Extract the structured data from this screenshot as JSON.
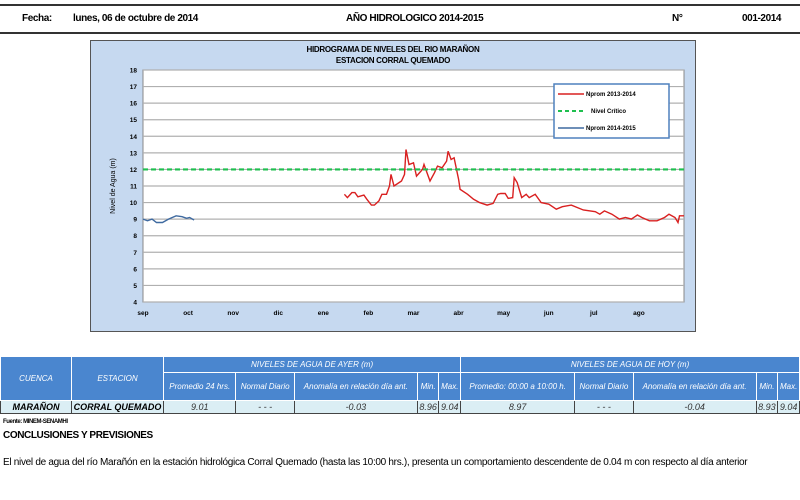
{
  "header": {
    "fecha_label": "Fecha:",
    "fecha_value": "lunes, 06 de octubre de 2014",
    "center": "AÑO HIDROLOGICO 2014-2015",
    "num_label": "N°",
    "num_value": "001-2014"
  },
  "chart_data": {
    "type": "line",
    "title": "HIDROGRAMA  DE NIVELES  DEL RIO MARAÑON",
    "subtitle": "ESTACION CORRAL QUEMADO",
    "ylabel": "Nivel de Agua (m)",
    "xlabel": "",
    "ylim": [
      4,
      18
    ],
    "yticks": [
      "4",
      "5",
      "6",
      "7",
      "8",
      "9",
      "10",
      "11",
      "12",
      "13",
      "14",
      "15",
      "16",
      "17",
      "18"
    ],
    "xticks": [
      "sep",
      "oct",
      "nov",
      "dic",
      "ene",
      "feb",
      "mar",
      "abr",
      "may",
      "jun",
      "jul",
      "ago"
    ],
    "grid": true,
    "legend_position": "top-right",
    "series": [
      {
        "name": "Nprom 2013-2014",
        "color": "#d92020",
        "style": "solid",
        "points": [
          [
            "2014-01-15",
            10.5
          ],
          [
            "2014-01-17",
            10.3
          ],
          [
            "2014-01-20",
            10.6
          ],
          [
            "2014-01-22",
            10.6
          ],
          [
            "2014-01-24",
            10.35
          ],
          [
            "2014-01-28",
            10.45
          ],
          [
            "2014-01-30",
            10.2
          ],
          [
            "2014-02-03",
            9.85
          ],
          [
            "2014-02-05",
            9.85
          ],
          [
            "2014-02-08",
            10.1
          ],
          [
            "2014-02-10",
            10.5
          ],
          [
            "2014-02-13",
            10.5
          ],
          [
            "2014-02-15",
            11.0
          ],
          [
            "2014-02-16",
            11.7
          ],
          [
            "2014-02-18",
            11.0
          ],
          [
            "2014-02-23",
            11.3
          ],
          [
            "2014-02-25",
            11.7
          ],
          [
            "2014-02-26",
            13.2
          ],
          [
            "2014-02-28",
            12.3
          ],
          [
            "2014-03-01",
            12.4
          ],
          [
            "2014-03-03",
            11.6
          ],
          [
            "2014-03-07",
            12.0
          ],
          [
            "2014-03-08",
            12.3
          ],
          [
            "2014-03-12",
            11.3
          ],
          [
            "2014-03-15",
            11.8
          ],
          [
            "2014-03-17",
            12.2
          ],
          [
            "2014-03-20",
            12.1
          ],
          [
            "2014-03-23",
            12.5
          ],
          [
            "2014-03-24",
            13.1
          ],
          [
            "2014-03-26",
            12.6
          ],
          [
            "2014-03-28",
            12.7
          ],
          [
            "2014-03-31",
            11.4
          ],
          [
            "2014-04-02",
            10.8
          ],
          [
            "2014-04-07",
            10.5
          ],
          [
            "2014-04-11",
            10.2
          ],
          [
            "2014-04-15",
            10.0
          ],
          [
            "2014-04-20",
            9.85
          ],
          [
            "2014-04-24",
            9.95
          ],
          [
            "2014-04-27",
            10.5
          ],
          [
            "2014-04-29",
            10.55
          ],
          [
            "2014-05-02",
            10.55
          ],
          [
            "2014-05-04",
            10.25
          ],
          [
            "2014-05-07",
            10.3
          ],
          [
            "2014-05-08",
            11.5
          ],
          [
            "2014-05-10",
            11.2
          ],
          [
            "2014-05-13",
            10.3
          ],
          [
            "2014-05-16",
            10.5
          ],
          [
            "2014-05-18",
            10.3
          ],
          [
            "2014-05-22",
            10.5
          ],
          [
            "2014-05-26",
            10.0
          ],
          [
            "2014-06-01",
            9.9
          ],
          [
            "2014-06-06",
            9.6
          ],
          [
            "2014-06-10",
            9.75
          ],
          [
            "2014-06-16",
            9.85
          ],
          [
            "2014-06-24",
            9.55
          ],
          [
            "2014-07-02",
            9.45
          ],
          [
            "2014-07-05",
            9.3
          ],
          [
            "2014-07-08",
            9.5
          ],
          [
            "2014-07-13",
            9.3
          ],
          [
            "2014-07-18",
            9.0
          ],
          [
            "2014-07-22",
            9.1
          ],
          [
            "2014-07-26",
            9.0
          ],
          [
            "2014-07-30",
            9.25
          ],
          [
            "2014-08-03",
            9.1
          ],
          [
            "2014-08-08",
            8.9
          ],
          [
            "2014-08-13",
            8.9
          ],
          [
            "2014-08-18",
            9.1
          ],
          [
            "2014-08-21",
            9.3
          ],
          [
            "2014-08-25",
            9.1
          ],
          [
            "2014-08-27",
            8.8
          ],
          [
            "2014-08-28",
            9.2
          ],
          [
            "2014-08-31",
            9.2
          ]
        ]
      },
      {
        "name": "Nivel Crítico",
        "color": "#1fbf4f",
        "style": "dashed",
        "points": [
          [
            "2013-09-01",
            12
          ],
          [
            "2014-08-31",
            12
          ]
        ]
      },
      {
        "name": "Nprom 2014-2015",
        "color": "#3f6aa0",
        "style": "solid",
        "points": [
          [
            "2014-09-01",
            9.0
          ],
          [
            "2014-09-04",
            8.9
          ],
          [
            "2014-09-07",
            9.0
          ],
          [
            "2014-09-10",
            8.8
          ],
          [
            "2014-09-14",
            8.8
          ],
          [
            "2014-09-18",
            9.0
          ],
          [
            "2014-09-23",
            9.2
          ],
          [
            "2014-09-27",
            9.15
          ],
          [
            "2014-09-30",
            9.05
          ],
          [
            "2014-10-02",
            9.1
          ],
          [
            "2014-10-05",
            8.95
          ]
        ]
      }
    ]
  },
  "table": {
    "cuenca_h": "CUENCA",
    "estacion_h": "ESTACION",
    "ayer_h": "NIVELES DE AGUA DE AYER (m)",
    "hoy_h": "NIVELES DE AGUA DE HOY (m)",
    "ayer_cols": [
      "Promedio  24 hrs.",
      "Normal Diario",
      "Anomalía en relación día ant.",
      "Min.",
      "Max."
    ],
    "hoy_cols": [
      "Promedio: 00:00 a 10:00  h.",
      "Normal Diario",
      "Anomalía en relación día ant.",
      "Min.",
      "Max."
    ],
    "row": {
      "cuenca": "MARAÑON",
      "estacion": "CORRAL QUEMADO",
      "ayer": [
        "9.01",
        "- - -",
        "-0.03",
        "8.96",
        "9.04"
      ],
      "hoy": [
        "8.97",
        "- - -",
        "-0.04",
        "8.93",
        "9.04"
      ]
    }
  },
  "fuente": "Fuente: MINEM-SENAMHI",
  "conclusiones_title": "CONCLUSIONES Y PREVISIONES",
  "conclusiones_text": "El nivel de agua del río Marañón en la estación hidrológica Corral Quemado (hasta las 10:00 hrs.), presenta un comportamiento descendente de 0.04 m con respecto al día anterior"
}
